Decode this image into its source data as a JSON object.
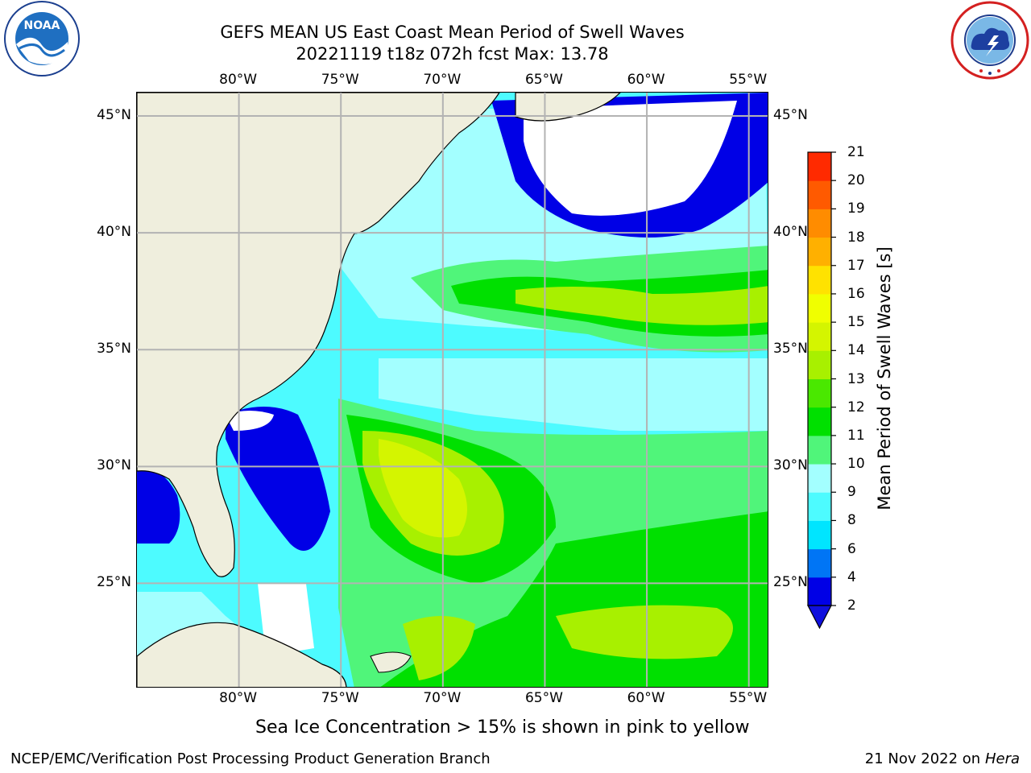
{
  "title": {
    "line1": "GEFS MEAN US East Coast Mean Period of Swell Waves",
    "line2": "20221119 t18z 072h fcst   Max: 13.78"
  },
  "logos": {
    "noaa": {
      "text": "NOAA",
      "ring_text": "NATIONAL OCEANIC AND ATMOSPHERIC ADMINISTRATION · U.S. DEPARTMENT OF COMMERCE"
    },
    "nws": {
      "ring_text": "NATIONAL WEATHER SERVICE"
    }
  },
  "map": {
    "lon_ticks": [
      "80°W",
      "75°W",
      "70°W",
      "65°W",
      "60°W",
      "55°W"
    ],
    "lat_ticks": [
      "45°N",
      "40°N",
      "35°N",
      "30°N",
      "25°N"
    ],
    "lon_range": [
      -85,
      -54
    ],
    "lat_range": [
      20.5,
      46
    ],
    "land_color": "#efeedd",
    "grid_color": "#b3b3b3"
  },
  "colorbar": {
    "label": "Mean Period of Swell Waves [s]",
    "levels": [
      "2",
      "4",
      "6",
      "8",
      "9",
      "10",
      "11",
      "12",
      "13",
      "14",
      "15",
      "16",
      "17",
      "18",
      "19",
      "20",
      "21"
    ],
    "colors": [
      "#0000e6",
      "#0075f5",
      "#00e5ff",
      "#4dfbff",
      "#a3ffff",
      "#50f57a",
      "#00e000",
      "#4ae800",
      "#a8f000",
      "#d4f500",
      "#f0ff00",
      "#ffe200",
      "#ffb000",
      "#ff8c00",
      "#ff5a00",
      "#ff2a00"
    ],
    "extend_color": "#1010dd"
  },
  "note": "Sea Ice Concentration > 15% is shown in pink to yellow",
  "footer": {
    "left": "NCEP/EMC/Verification Post Processing Product Generation Branch",
    "date": "21 Nov 2022 on",
    "host": "Hera"
  }
}
